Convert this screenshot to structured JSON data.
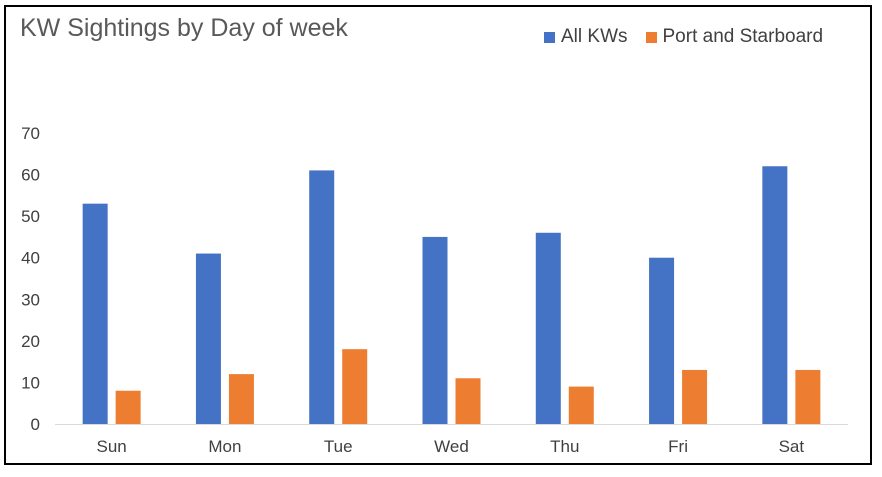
{
  "chart_data": {
    "type": "bar",
    "title": "KW Sightings by Day of week",
    "categories": [
      "Sun",
      "Mon",
      "Tue",
      "Wed",
      "Thu",
      "Fri",
      "Sat"
    ],
    "series": [
      {
        "name": "All KWs",
        "color": "#4472C4",
        "values": [
          53,
          41,
          61,
          45,
          46,
          40,
          62
        ]
      },
      {
        "name": "Port and Starboard",
        "color": "#ED7D31",
        "values": [
          8,
          12,
          18,
          11,
          9,
          13,
          13
        ]
      }
    ],
    "ylim": [
      0,
      70
    ],
    "yticks": [
      0,
      10,
      20,
      30,
      40,
      50,
      60,
      70
    ],
    "grid": false,
    "legend_position": "top-right"
  }
}
